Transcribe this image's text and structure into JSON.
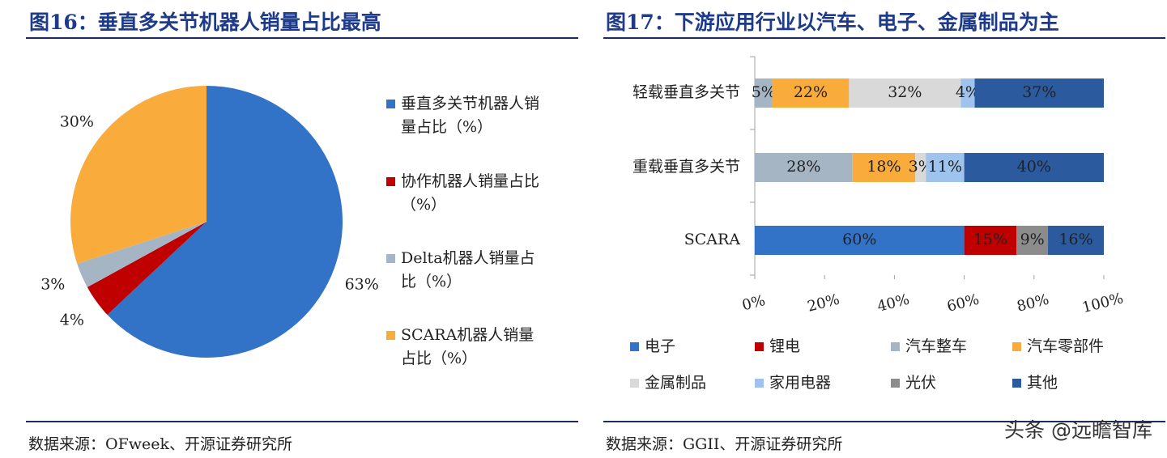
{
  "left": {
    "title": "图16：垂直多关节机器人销量占比最高",
    "source": "数据来源：OFweek、开源证券研究所",
    "chart_data": {
      "type": "pie",
      "slices": [
        {
          "name": "垂直多关节机器人销量占比（%）",
          "value": 63,
          "label": "63%",
          "color": "#3273c8"
        },
        {
          "name": "协作机器人销量占比（%）",
          "value": 4,
          "label": "4%",
          "color": "#c00000"
        },
        {
          "name": "Delta机器人销量占比（%）",
          "value": 3,
          "label": "3%",
          "color": "#a5b5c4"
        },
        {
          "name": "SCARA机器人销量占比（%）",
          "value": 30,
          "label": "30%",
          "color": "#f9ab3c"
        }
      ],
      "legend_position": "right"
    }
  },
  "right": {
    "title": "图17：下游应用行业以汽车、电子、金属制品为主",
    "source": "数据来源：GGII、开源证券研究所",
    "chart_data": {
      "type": "bar",
      "orientation": "horizontal",
      "stacked": true,
      "categories": [
        "轻载垂直多关节",
        "重载垂直多关节",
        "SCARA"
      ],
      "series": [
        {
          "name": "电子",
          "color": "#3273c8",
          "values": [
            0,
            0,
            60
          ]
        },
        {
          "name": "锂电",
          "color": "#c00000",
          "values": [
            0,
            0,
            15
          ]
        },
        {
          "name": "汽车整车",
          "color": "#a5b5c4",
          "values": [
            5,
            28,
            0
          ]
        },
        {
          "name": "汽车零部件",
          "color": "#f9ab3c",
          "values": [
            22,
            18,
            0
          ]
        },
        {
          "name": "金属制品",
          "color": "#d9d9d9",
          "values": [
            32,
            3,
            0
          ]
        },
        {
          "name": "家用电器",
          "color": "#9ec3ec",
          "values": [
            4,
            11,
            0
          ]
        },
        {
          "name": "光伏",
          "color": "#8c8c8c",
          "values": [
            0,
            0,
            9
          ]
        },
        {
          "name": "其他",
          "color": "#2c5a9e",
          "values": [
            37,
            40,
            16
          ]
        }
      ],
      "x_ticks": [
        "0%",
        "20%",
        "40%",
        "60%",
        "80%",
        "100%"
      ],
      "xlim": [
        0,
        100
      ],
      "legend_position": "bottom"
    }
  },
  "watermark": "头条 @远瞻智库"
}
